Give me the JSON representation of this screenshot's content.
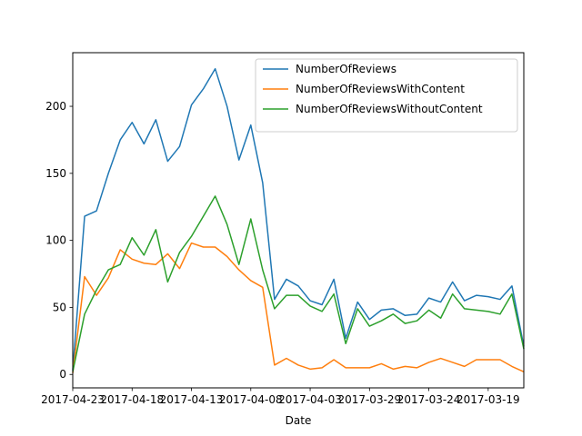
{
  "chart_data": {
    "type": "line",
    "title": "",
    "xlabel": "Date",
    "ylabel": "",
    "x_tick_labels": [
      "2017-04-23",
      "2017-04-18",
      "2017-04-13",
      "2017-04-08",
      "2017-04-03",
      "2017-03-29",
      "2017-03-24",
      "2017-03-19"
    ],
    "x_tick_index": [
      0,
      5,
      10,
      15,
      20,
      25,
      30,
      35
    ],
    "y_ticks": [
      0,
      50,
      100,
      150,
      200
    ],
    "ylim": [
      -10,
      240
    ],
    "x_range": [
      0,
      38
    ],
    "legend_position": "top-right",
    "grid": false,
    "x": [
      "2017-04-23",
      "2017-04-22",
      "2017-04-21",
      "2017-04-20",
      "2017-04-19",
      "2017-04-18",
      "2017-04-17",
      "2017-04-16",
      "2017-04-15",
      "2017-04-14",
      "2017-04-13",
      "2017-04-12",
      "2017-04-11",
      "2017-04-10",
      "2017-04-09",
      "2017-04-08",
      "2017-04-07",
      "2017-04-06",
      "2017-04-05",
      "2017-04-04",
      "2017-04-03",
      "2017-04-02",
      "2017-04-01",
      "2017-03-31",
      "2017-03-30",
      "2017-03-29",
      "2017-03-28",
      "2017-03-27",
      "2017-03-26",
      "2017-03-25",
      "2017-03-24",
      "2017-03-23",
      "2017-03-22",
      "2017-03-21",
      "2017-03-20",
      "2017-03-19",
      "2017-03-18",
      "2017-03-17",
      "2017-03-16"
    ],
    "series": [
      {
        "name": "NumberOfReviews",
        "color": "#1f77b4",
        "values": [
          3,
          118,
          122,
          150,
          175,
          188,
          172,
          190,
          159,
          170,
          201,
          213,
          228,
          200,
          160,
          186,
          143,
          56,
          71,
          66,
          55,
          52,
          71,
          27,
          54,
          41,
          48,
          49,
          44,
          45,
          57,
          54,
          69,
          55,
          59,
          58,
          56,
          66,
          21
        ]
      },
      {
        "name": "NumberOfReviewsWithContent",
        "color": "#ff7f0e",
        "values": [
          1,
          73,
          59,
          72,
          93,
          86,
          83,
          82,
          90,
          79,
          98,
          95,
          95,
          88,
          78,
          70,
          65,
          7,
          12,
          7,
          4,
          5,
          11,
          5,
          5,
          5,
          8,
          4,
          6,
          5,
          9,
          12,
          9,
          6,
          11,
          11,
          11,
          6,
          2
        ]
      },
      {
        "name": "NumberOfReviewsWithoutContent",
        "color": "#2ca02c",
        "values": [
          2,
          45,
          63,
          78,
          82,
          102,
          89,
          108,
          69,
          91,
          103,
          118,
          133,
          112,
          82,
          116,
          78,
          49,
          59,
          59,
          51,
          47,
          60,
          23,
          49,
          36,
          40,
          45,
          38,
          40,
          48,
          42,
          60,
          49,
          48,
          47,
          45,
          60,
          19
        ]
      }
    ]
  }
}
